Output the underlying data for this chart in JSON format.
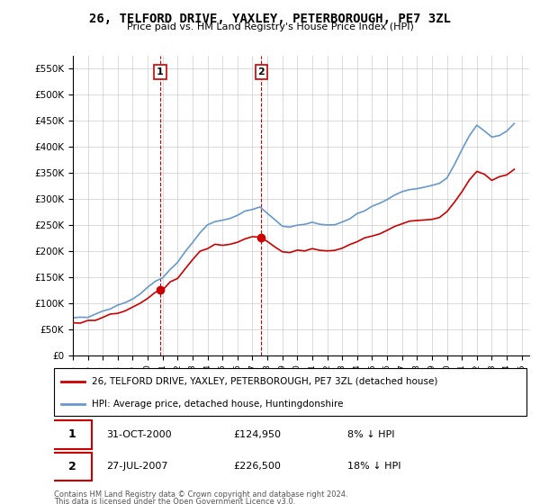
{
  "title": "26, TELFORD DRIVE, YAXLEY, PETERBOROUGH, PE7 3ZL",
  "subtitle": "Price paid vs. HM Land Registry's House Price Index (HPI)",
  "sale1_label": "31-OCT-2000",
  "sale1_price": 124950,
  "sale1_pct": "8% ↓ HPI",
  "sale1_year": 2000.833,
  "sale2_label": "27-JUL-2007",
  "sale2_price": 226500,
  "sale2_pct": "18% ↓ HPI",
  "sale2_year": 2007.583,
  "red_line_label": "26, TELFORD DRIVE, YAXLEY, PETERBOROUGH, PE7 3ZL (detached house)",
  "blue_line_label": "HPI: Average price, detached house, Huntingdonshire",
  "footnote1": "Contains HM Land Registry data © Crown copyright and database right 2024.",
  "footnote2": "This data is licensed under the Open Government Licence v3.0.",
  "ylim_min": 0,
  "ylim_max": 575000,
  "red_color": "#cc0000",
  "blue_color": "#6699cc",
  "grid_color": "#cccccc",
  "box_color": "#cc0000"
}
